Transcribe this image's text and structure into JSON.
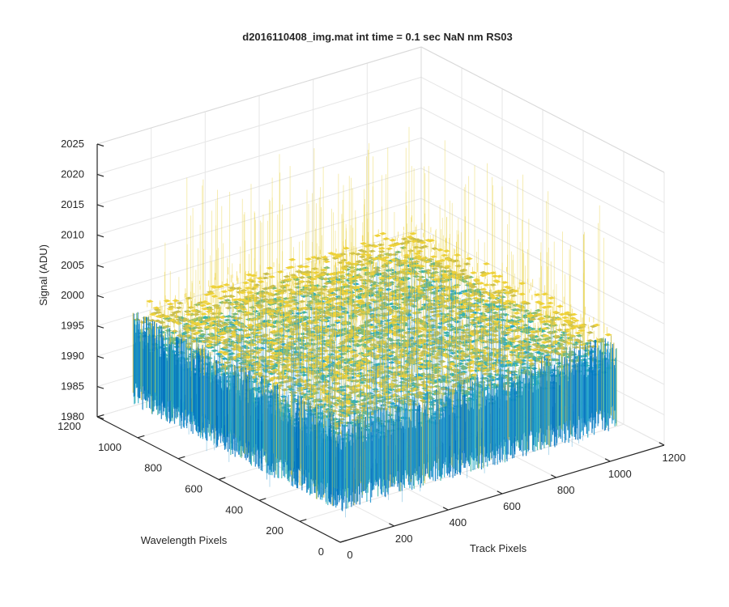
{
  "chart_data": {
    "type": "surface",
    "title": "d2016110408_img.mat int time = 0.1 sec  NaN nm RS03",
    "xlabel": "Track Pixels",
    "ylabel": "Wavelength Pixels",
    "zlabel": "Signal (ADU)",
    "xlim": [
      0,
      1200
    ],
    "ylim": [
      0,
      1200
    ],
    "zlim": [
      1980,
      2025
    ],
    "x_ticks": [
      "0",
      "200",
      "400",
      "600",
      "800",
      "1000",
      "1200"
    ],
    "y_ticks": [
      "0",
      "200",
      "400",
      "600",
      "800",
      "1000",
      "1200"
    ],
    "z_ticks": [
      "1980",
      "1985",
      "1990",
      "1995",
      "2000",
      "2005",
      "2010",
      "2015",
      "2020",
      "2025"
    ],
    "data_extent": {
      "x": [
        1,
        1024
      ],
      "y": [
        1,
        1024
      ]
    },
    "signal_typical_range": [
      1990,
      2002
    ],
    "signal_spike_range": [
      1982,
      2021
    ],
    "colormap": [
      "#0072bd",
      "#1591d0",
      "#23a8c8",
      "#3cb5a8",
      "#7cba79",
      "#c6bd52",
      "#efd23a"
    ],
    "grid": true
  }
}
